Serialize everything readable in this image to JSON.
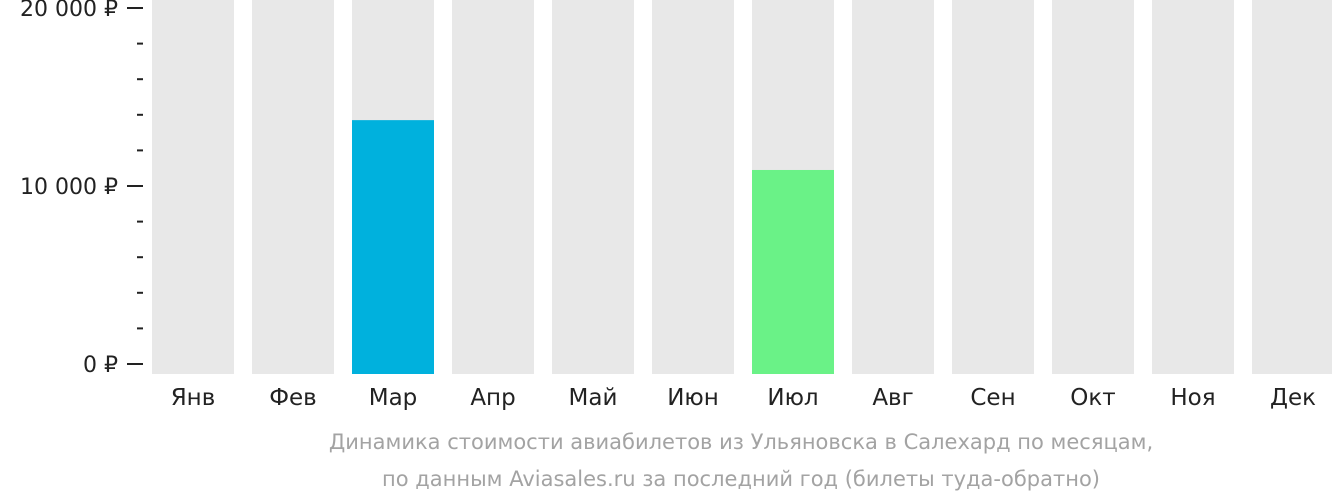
{
  "chart_data": {
    "type": "bar",
    "categories": [
      "Янв",
      "Фев",
      "Мар",
      "Апр",
      "Май",
      "Июн",
      "Июл",
      "Авг",
      "Сен",
      "Окт",
      "Ноя",
      "Дек"
    ],
    "values": [
      null,
      null,
      13700,
      null,
      null,
      null,
      10900,
      null,
      null,
      null,
      null,
      null
    ],
    "bar_colors": [
      null,
      null,
      "#00b1dd",
      null,
      null,
      null,
      "#6af287",
      null,
      null,
      null,
      null,
      null
    ],
    "background_bar_color": "#e8e8e8",
    "ylim": [
      0,
      20000
    ],
    "yticks": [
      {
        "value": 0,
        "label": "0 ₽"
      },
      {
        "value": 10000,
        "label": "10 000 ₽"
      },
      {
        "value": 20000,
        "label": "20 000 ₽"
      }
    ],
    "minor_tick_step": 2000,
    "caption_line1": "Динамика стоимости авиабилетов из Ульяновска в Салехард по месяцам,",
    "caption_line2": "по данным Aviasales.ru за последний год (билеты туда-обратно)"
  }
}
